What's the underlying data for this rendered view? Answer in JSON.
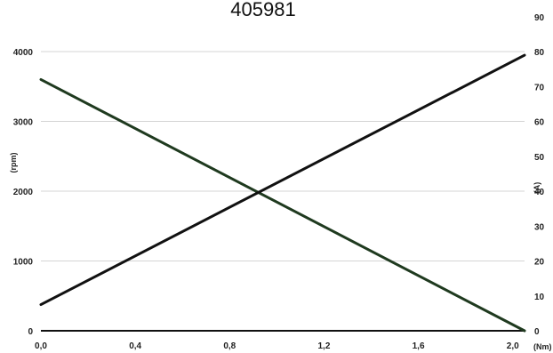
{
  "chart_data": {
    "type": "line",
    "title": "405981",
    "xlabel": "(Nm)",
    "ylabel": "(rpm)",
    "y2label": "(A)",
    "xlim": [
      0.0,
      2.05
    ],
    "ylim": [
      0,
      4000
    ],
    "y2lim": [
      0,
      90
    ],
    "x_ticks": [
      "0,0",
      "0,4",
      "0,8",
      "1,2",
      "1,6",
      "2,0"
    ],
    "y_ticks": [
      "0",
      "1000",
      "2000",
      "3000",
      "4000"
    ],
    "y2_ticks": [
      "0",
      "10",
      "20",
      "30",
      "40",
      "50",
      "60",
      "70",
      "80",
      "90"
    ],
    "grid": true,
    "series": [
      {
        "axis": "left",
        "color": "#1f3a1f",
        "x": [
          0.0,
          2.05
        ],
        "y": [
          3600,
          0
        ]
      },
      {
        "axis": "right",
        "color": "#111111",
        "x": [
          0.0,
          2.05
        ],
        "y": [
          7.5,
          79
        ]
      }
    ]
  }
}
